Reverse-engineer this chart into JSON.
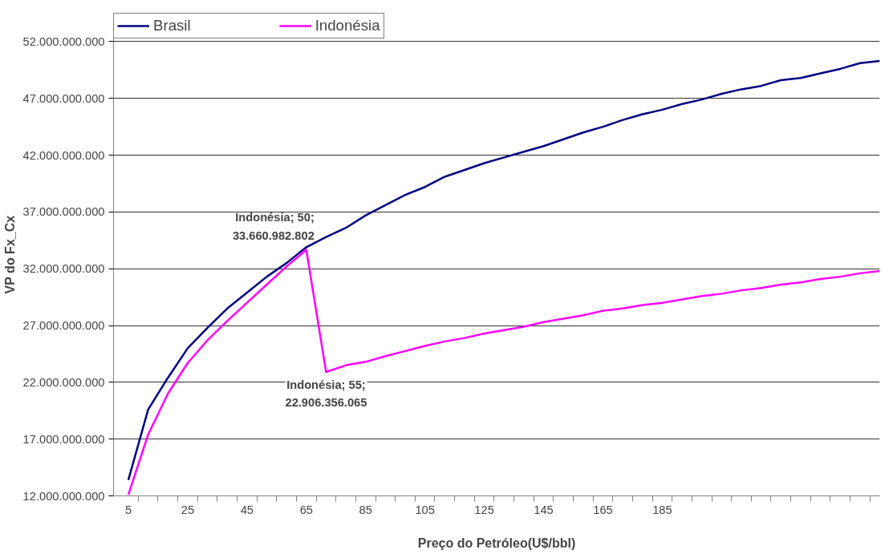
{
  "chart_data": {
    "type": "line",
    "xlabel": "Preço do Petróleo(U$/bbl)",
    "ylabel": "VP do Fx_Cx",
    "categories": [
      "5",
      null,
      null,
      "25",
      null,
      null,
      "45",
      null,
      null,
      "65",
      null,
      null,
      "85",
      null,
      null,
      "105",
      null,
      null,
      "125",
      null,
      null,
      "145",
      null,
      null,
      "165",
      null,
      null,
      "185",
      null,
      null,
      null,
      null,
      null,
      null,
      null,
      null,
      null,
      null,
      null
    ],
    "series": [
      {
        "name": "Brasil",
        "color": "#000080",
        "values": [
          13400000000.0,
          19600000000.0,
          22400000000.0,
          25000000000.0,
          26800000000.0,
          28500000000.0,
          29900000000.0,
          31300000000.0,
          32500000000.0,
          33900000000.0,
          34800000000.0,
          35600000000.0,
          36700000000.0,
          37600000000.0,
          38500000000.0,
          39200000000.0,
          40100000000.0,
          40700000000.0,
          41300000000.0,
          41800000000.0,
          42300000000.0,
          42800000000.0,
          43400000000.0,
          44000000000.0,
          44500000000.0,
          45100000000.0,
          45600000000.0,
          46000000000.0,
          46500000000.0,
          46900000000.0,
          47400000000.0,
          47800000000.0,
          48100000000.0,
          48600000000.0,
          48800000000.0,
          49200000000.0,
          49600000000.0,
          50100000000.0,
          50300000000.0
        ]
      },
      {
        "name": "Indonésia",
        "color": "#ff00ff",
        "values": [
          12100000000.0,
          17400000000.0,
          21000000000.0,
          23700000000.0,
          25700000000.0,
          27400000000.0,
          29000000000.0,
          30600000000.0,
          32200000000.0,
          33660982802,
          22906356065,
          23500000000.0,
          23800000000.0,
          24300000000.0,
          24750000000.0,
          25200000000.0,
          25600000000.0,
          25900000000.0,
          26300000000.0,
          26600000000.0,
          26900000000.0,
          27300000000.0,
          27600000000.0,
          27900000000.0,
          28300000000.0,
          28500000000.0,
          28800000000.0,
          29000000000.0,
          29300000000.0,
          29600000000.0,
          29800000000.0,
          30100000000.0,
          30300000000.0,
          30600000000.0,
          30800000000.0,
          31100000000.0,
          31300000000.0,
          31600000000.0,
          31800000000.0
        ]
      }
    ],
    "ylim": [
      12000000000,
      54500000000
    ],
    "yticks": [
      {
        "value": 12000000000,
        "label": "12.000.000.000"
      },
      {
        "value": 17000000000,
        "label": "17.000.000.000"
      },
      {
        "value": 22000000000,
        "label": "22.000.000.000"
      },
      {
        "value": 27000000000,
        "label": "27.000.000.000"
      },
      {
        "value": 32000000000,
        "label": "32.000.000.000"
      },
      {
        "value": 37000000000,
        "label": "37.000.000.000"
      },
      {
        "value": 42000000000,
        "label": "42.000.000.000"
      },
      {
        "value": 47000000000,
        "label": "47.000.000.000"
      },
      {
        "value": 52000000000,
        "label": "52.000.000.000"
      }
    ],
    "annotations": [
      "Indonésia; 50; 33.660.982.802",
      "Indonésia; 55; 22.906.356.065"
    ],
    "grid": "y",
    "legend": "top",
    "marker": "none",
    "line_style": "solid"
  }
}
